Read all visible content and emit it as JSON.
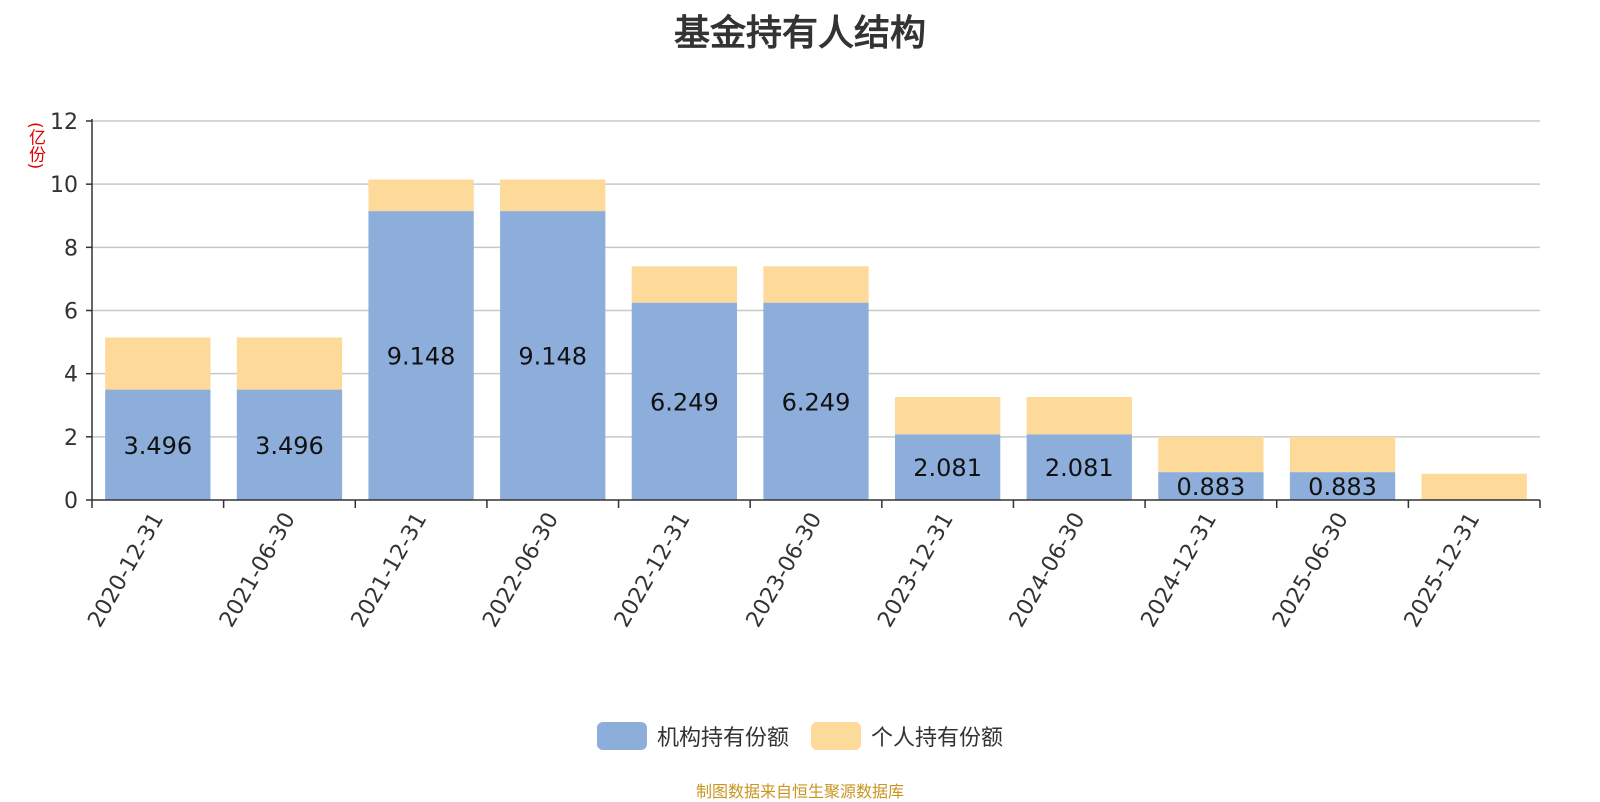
{
  "chart_data": {
    "type": "bar",
    "stacked": true,
    "title": "基金持有人结构",
    "ylabel": "(亿份)",
    "xlabel": "",
    "ylim": [
      0,
      12
    ],
    "yticks": [
      0,
      2,
      4,
      6,
      8,
      10,
      12
    ],
    "grid": true,
    "legend_position": "bottom",
    "categories": [
      "2020-12-31",
      "2021-06-30",
      "2021-12-31",
      "2022-06-30",
      "2022-12-31",
      "2023-06-30",
      "2023-12-31",
      "2024-06-30",
      "2024-12-31",
      "2025-06-30",
      "2025-12-31"
    ],
    "series": [
      {
        "name": "机构持有份额",
        "color": "#8daedb",
        "values": [
          3.496,
          3.496,
          9.148,
          9.148,
          6.249,
          6.249,
          2.081,
          2.081,
          0.883,
          0.883,
          0
        ],
        "labels": [
          "3.496",
          "3.496",
          "9.148",
          "9.148",
          "6.249",
          "6.249",
          "2.081",
          "2.081",
          "0.883",
          "0.883",
          ""
        ]
      },
      {
        "name": "个人持有份额",
        "color": "#fdd99a",
        "values": [
          1.65,
          1.65,
          1.0,
          1.0,
          1.15,
          1.15,
          1.18,
          1.18,
          1.12,
          1.12,
          0.83
        ]
      }
    ]
  },
  "source_text": "制图数据来自恒生聚源数据库"
}
